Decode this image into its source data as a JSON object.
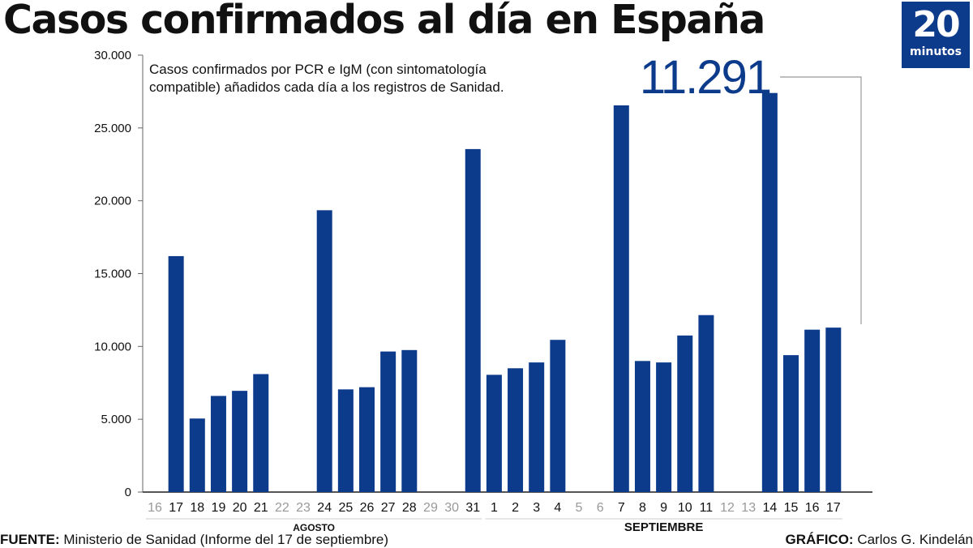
{
  "header": {
    "title": "Casos confirmados al día en España"
  },
  "logo": {
    "number": "20",
    "word": "minutos"
  },
  "chart_data": {
    "type": "bar",
    "subtitle_line1": "Casos confirmados por PCR e IgM (con sintomatología",
    "subtitle_line2": "compatible) añadidos cada día a los registros de Sanidad.",
    "highlight_label": "11.291",
    "ylim": [
      0,
      30000
    ],
    "y_ticks": [
      0,
      5000,
      10000,
      15000,
      20000,
      25000,
      30000
    ],
    "y_tick_labels": [
      "0",
      "5.000",
      "10.000",
      "15.000",
      "20.000",
      "25.000",
      "30.000"
    ],
    "categories": [
      "16",
      "17",
      "18",
      "19",
      "20",
      "21",
      "22",
      "23",
      "24",
      "25",
      "26",
      "27",
      "28",
      "29",
      "30",
      "31",
      "1",
      "2",
      "3",
      "4",
      "5",
      "6",
      "7",
      "8",
      "9",
      "10",
      "11",
      "12",
      "13",
      "14",
      "15",
      "16",
      "17"
    ],
    "values": [
      null,
      16200,
      5050,
      6600,
      6950,
      8100,
      null,
      null,
      19350,
      7050,
      7200,
      9650,
      9750,
      null,
      null,
      23550,
      8050,
      8500,
      8900,
      10450,
      null,
      null,
      26550,
      9000,
      8900,
      10750,
      12150,
      null,
      null,
      27400,
      9400,
      11150,
      11291
    ],
    "weekday_flags": [
      false,
      true,
      true,
      true,
      true,
      true,
      false,
      false,
      true,
      true,
      true,
      true,
      true,
      false,
      false,
      true,
      true,
      true,
      true,
      true,
      false,
      false,
      true,
      true,
      true,
      true,
      true,
      false,
      false,
      true,
      true,
      true,
      true
    ],
    "months": [
      {
        "label": "AGOSTO",
        "first": 0,
        "last": 15
      },
      {
        "label": "SEPTIEMBRE",
        "first": 16,
        "last": 32
      }
    ],
    "colors": {
      "bar": "#0d3b8c",
      "muted_label": "#999999",
      "axis": "#666666",
      "accent": "#0d3b8c"
    }
  },
  "footer": {
    "source_label": "FUENTE:",
    "source_text": " Ministerio de Sanidad (Informe del 17 de septiembre)",
    "credit_label": "GRÁFICO:",
    "credit_text": " Carlos G. Kindelán"
  }
}
